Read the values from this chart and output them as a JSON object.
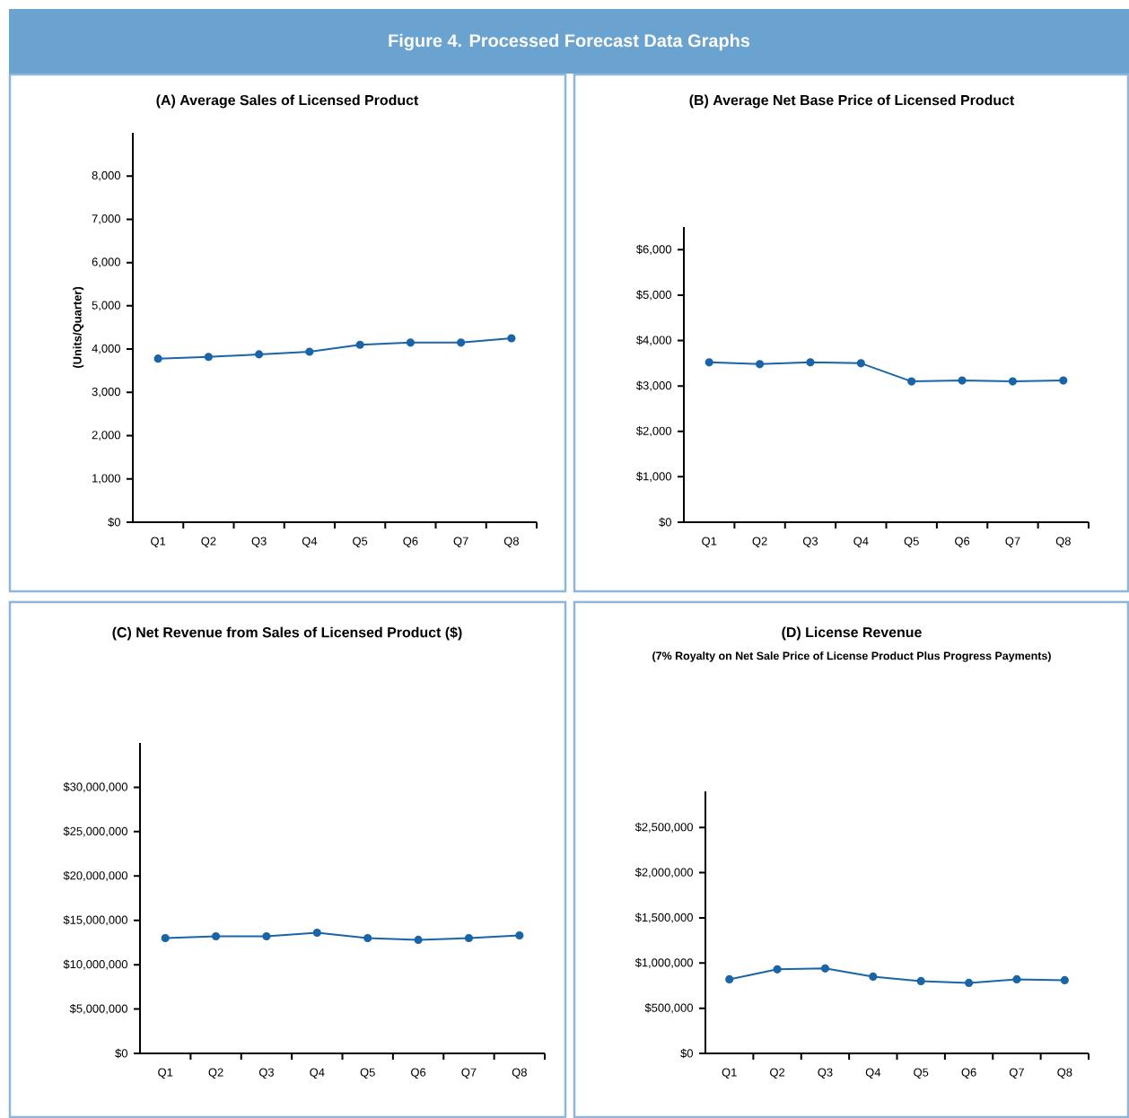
{
  "chart_data": [
    {
      "type": "line",
      "title": "(A) Average Sales of Licensed Product",
      "annotations": [
        "Figure 4. Processed Forecast Data Graphs"
      ],
      "ylabel": "(Units/Quarter)",
      "categories": [
        "Q1",
        "Q2",
        "Q3",
        "Q4",
        "Q5",
        "Q6",
        "Q7",
        "Q8"
      ],
      "values": [
        3780,
        3820,
        3880,
        3940,
        4100,
        4150,
        4150,
        4250
      ],
      "color": "#1a64a8",
      "marker": "circle",
      "ylim": [
        0,
        9000
      ],
      "yticks": [
        {
          "value": 0,
          "label": "$0"
        },
        {
          "value": 1000,
          "label": "1,000"
        },
        {
          "value": 2000,
          "label": "2,000"
        },
        {
          "value": 3000,
          "label": "3,000"
        },
        {
          "value": 4000,
          "label": "4,000"
        },
        {
          "value": 5000,
          "label": "5,000"
        },
        {
          "value": 6000,
          "label": "6,000"
        },
        {
          "value": 7000,
          "label": "7,000"
        },
        {
          "value": 8000,
          "label": "8,000"
        }
      ]
    },
    {
      "type": "line",
      "title": "(B) Average Net Base Price of Licensed Product",
      "categories": [
        "Q1",
        "Q2",
        "Q3",
        "Q4",
        "Q5",
        "Q6",
        "Q7",
        "Q8"
      ],
      "values": [
        3520,
        3480,
        3520,
        3500,
        3100,
        3120,
        3100,
        3120
      ],
      "color": "#1a64a8",
      "marker": "circle",
      "ylim": [
        0,
        6500
      ],
      "yticks": [
        {
          "value": 0,
          "label": "$0"
        },
        {
          "value": 1000,
          "label": "$1,000"
        },
        {
          "value": 2000,
          "label": "$2,000"
        },
        {
          "value": 3000,
          "label": "$3,000"
        },
        {
          "value": 4000,
          "label": "$4,000"
        },
        {
          "value": 5000,
          "label": "$5,000"
        },
        {
          "value": 6000,
          "label": "$6,000"
        }
      ]
    },
    {
      "type": "line",
      "title": "(C) Net Revenue from Sales of Licensed Product ($)",
      "categories": [
        "Q1",
        "Q2",
        "Q3",
        "Q4",
        "Q5",
        "Q6",
        "Q7",
        "Q8"
      ],
      "values": [
        13000000,
        13200000,
        13200000,
        13600000,
        13000000,
        12800000,
        13000000,
        13300000
      ],
      "color": "#1a64a8",
      "marker": "circle",
      "ylim": [
        0,
        35000000
      ],
      "yticks": [
        {
          "value": 0,
          "label": "$0"
        },
        {
          "value": 5000000,
          "label": "$5,000,000"
        },
        {
          "value": 10000000,
          "label": "$10,000,000"
        },
        {
          "value": 15000000,
          "label": "$15,000,000"
        },
        {
          "value": 20000000,
          "label": "$20,000,000"
        },
        {
          "value": 25000000,
          "label": "$25,000,000"
        },
        {
          "value": 30000000,
          "label": "$30,000,000"
        }
      ]
    },
    {
      "type": "line",
      "title": "(D) License Revenue",
      "subtitle": "(7% Royalty on Net Sale Price of License Product Plus Progress Payments)",
      "categories": [
        "Q1",
        "Q2",
        "Q3",
        "Q4",
        "Q5",
        "Q6",
        "Q7",
        "Q8"
      ],
      "values": [
        820000,
        930000,
        940000,
        850000,
        800000,
        780000,
        820000,
        810000
      ],
      "color": "#1a64a8",
      "marker": "circle",
      "ylim": [
        0,
        2900000
      ],
      "yticks": [
        {
          "value": 0,
          "label": "$0"
        },
        {
          "value": 500000,
          "label": "$500,000"
        },
        {
          "value": 1000000,
          "label": "$1,000,000"
        },
        {
          "value": 1500000,
          "label": "$1,500,000"
        },
        {
          "value": 2000000,
          "label": "$2,000,000"
        },
        {
          "value": 2500000,
          "label": "$2,500,000"
        }
      ]
    }
  ]
}
